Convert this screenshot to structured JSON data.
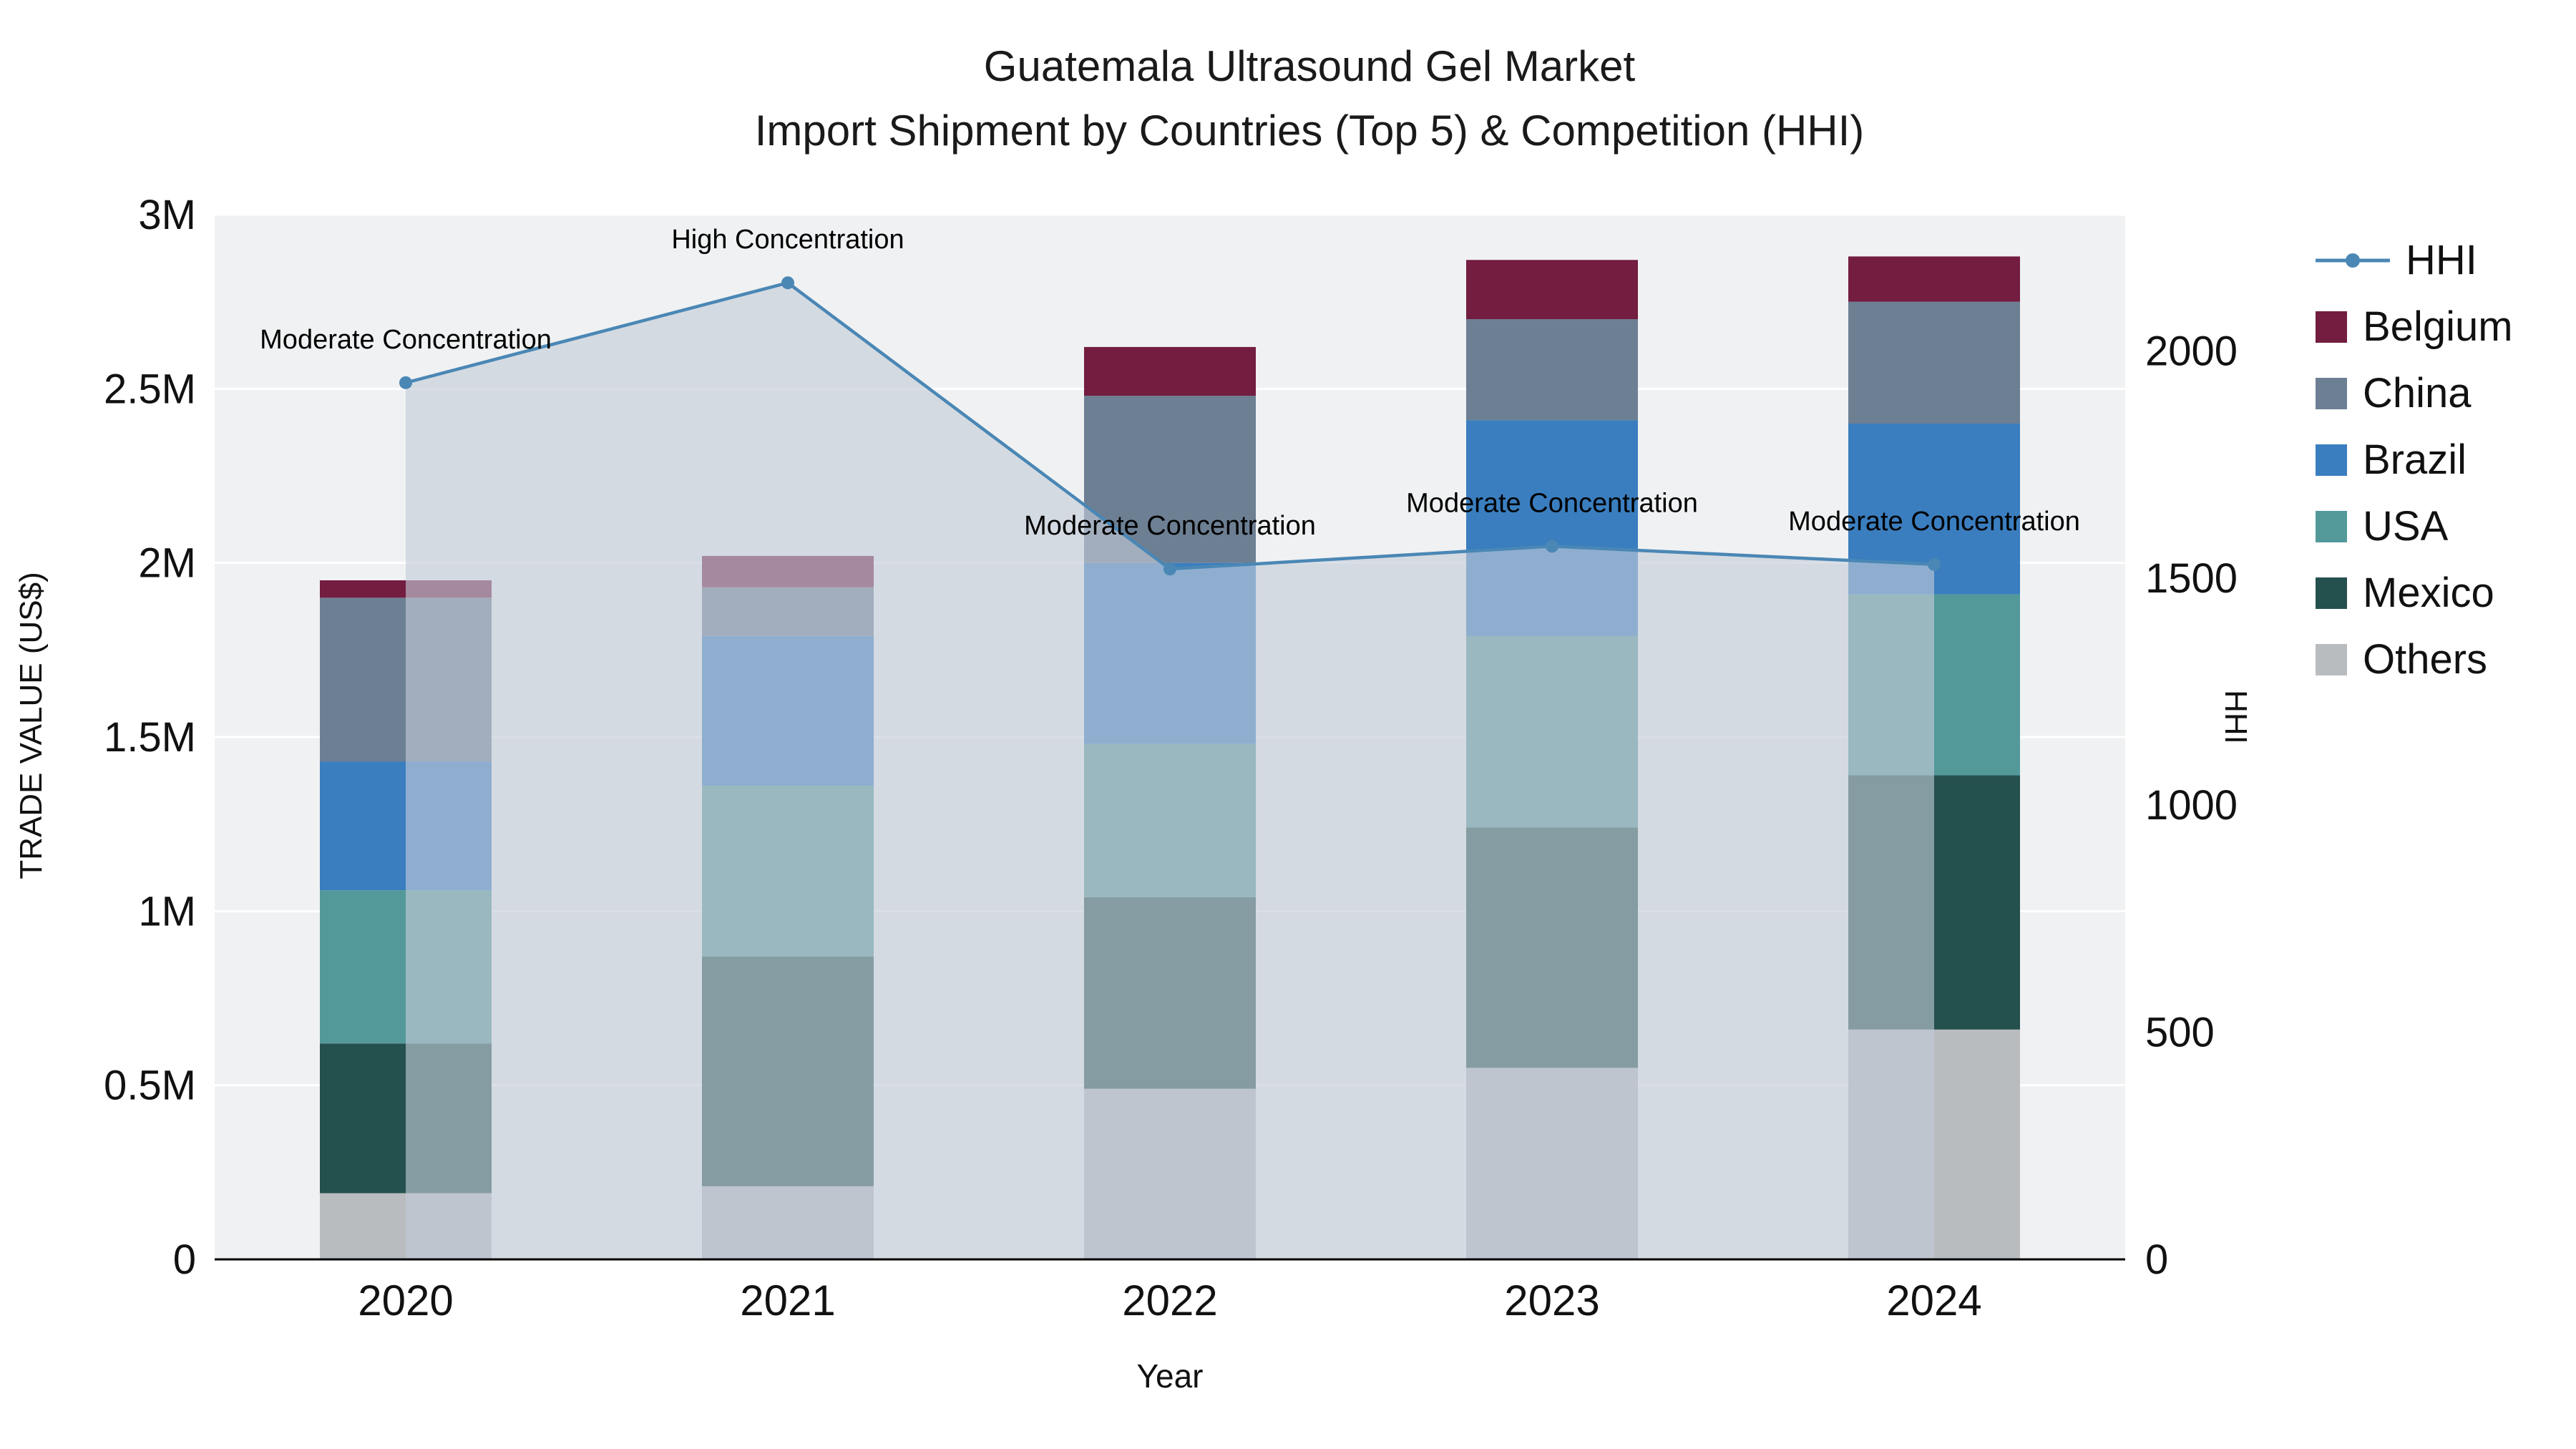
{
  "title": {
    "line1": "Guatemala Ultrasound Gel Market",
    "line2": "Import Shipment by Countries (Top 5) & Competition (HHI)"
  },
  "axes": {
    "left": {
      "title": "TRADE VALUE (US$)",
      "ticks": [
        {
          "label": "0",
          "value": 0
        },
        {
          "label": "0.5M",
          "value": 500000
        },
        {
          "label": "1M",
          "value": 1000000
        },
        {
          "label": "1.5M",
          "value": 1500000
        },
        {
          "label": "2M",
          "value": 2000000
        },
        {
          "label": "2.5M",
          "value": 2500000
        },
        {
          "label": "3M",
          "value": 3000000
        }
      ]
    },
    "right": {
      "title": "HHI",
      "ticks": [
        {
          "label": "0",
          "value": 0
        },
        {
          "label": "500",
          "value": 500
        },
        {
          "label": "1000",
          "value": 1000
        },
        {
          "label": "1500",
          "value": 1500
        },
        {
          "label": "2000",
          "value": 2000
        }
      ]
    },
    "x": {
      "title": "Year"
    }
  },
  "chart_data": {
    "type": "bar",
    "subtype": "stacked-bar-with-line-overlay",
    "categories": [
      "2020",
      "2021",
      "2022",
      "2023",
      "2024"
    ],
    "stack_order_bottom_to_top": [
      "Others",
      "Mexico",
      "USA",
      "Brazil",
      "China",
      "Belgium"
    ],
    "series": [
      {
        "name": "Others",
        "color": "#b9bcbf",
        "values": [
          190000,
          210000,
          490000,
          550000,
          660000
        ]
      },
      {
        "name": "Mexico",
        "color": "#24504e",
        "values": [
          430000,
          660000,
          550000,
          690000,
          730000
        ]
      },
      {
        "name": "USA",
        "color": "#54999a",
        "values": [
          440000,
          490000,
          440000,
          550000,
          520000
        ]
      },
      {
        "name": "Brazil",
        "color": "#3a7ebf",
        "values": [
          370000,
          430000,
          520000,
          620000,
          490000
        ]
      },
      {
        "name": "China",
        "color": "#6d7f93",
        "values": [
          470000,
          140000,
          480000,
          290000,
          350000
        ]
      },
      {
        "name": "Belgium",
        "color": "#731d40",
        "values": [
          50000,
          90000,
          140000,
          170000,
          130000
        ]
      }
    ],
    "line_series": {
      "name": "HHI",
      "axis": "right",
      "color": "#4a87b5",
      "fill_color": "rgba(195,204,216,0.62)",
      "values": [
        1930,
        2150,
        1520,
        1570,
        1530
      ]
    },
    "annotations": [
      {
        "text": "Moderate Concentration",
        "index": 0
      },
      {
        "text": "High Concentration",
        "index": 1
      },
      {
        "text": "Moderate Concentration",
        "index": 2
      },
      {
        "text": "Moderate Concentration",
        "index": 3
      },
      {
        "text": "Moderate Concentration",
        "index": 4
      }
    ],
    "ylim_left": [
      0,
      3000000
    ],
    "ylim_right": [
      0,
      2300
    ],
    "xlabel": "Year",
    "ylabel_left": "TRADE VALUE (US$)",
    "ylabel_right": "HHI",
    "grid": true,
    "legend_position": "outside-top-right",
    "plot_bg": "#f0f1f2",
    "grid_color": "#ffffff"
  },
  "legend": {
    "items": [
      {
        "label": "HHI",
        "type": "line",
        "color": "#4a87b5"
      },
      {
        "label": "Belgium",
        "type": "square",
        "color": "#731d40"
      },
      {
        "label": "China",
        "type": "square",
        "color": "#6d7f93"
      },
      {
        "label": "Brazil",
        "type": "square",
        "color": "#3a7ebf"
      },
      {
        "label": "USA",
        "type": "square",
        "color": "#54999a"
      },
      {
        "label": "Mexico",
        "type": "square",
        "color": "#24504e"
      },
      {
        "label": "Others",
        "type": "square",
        "color": "#b9bcbf"
      }
    ]
  }
}
